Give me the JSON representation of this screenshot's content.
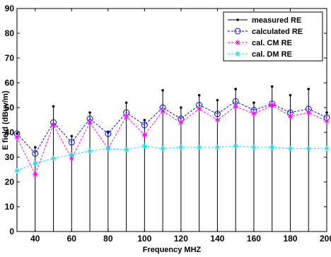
{
  "chart_data": {
    "type": "line",
    "title": "",
    "xlabel": "Frequency MHZ",
    "ylabel": "E field (dBuv/m)",
    "xlim": [
      30,
      200
    ],
    "ylim": [
      0,
      90
    ],
    "x_ticks": [
      40,
      60,
      80,
      100,
      120,
      140,
      160,
      180,
      200
    ],
    "y_ticks": [
      0,
      10,
      20,
      30,
      40,
      50,
      60,
      70,
      80,
      90
    ],
    "grid": false,
    "legend_position": "top-right",
    "x": [
      30,
      40,
      50,
      60,
      70,
      80,
      90,
      100,
      110,
      120,
      130,
      140,
      150,
      160,
      170,
      180,
      190,
      200
    ],
    "series": [
      {
        "name": "measured RE",
        "style": "stem",
        "color": "#000000",
        "marker": "dot",
        "values": [
          39.5,
          34,
          50.5,
          38.5,
          48,
          40,
          52,
          45,
          57,
          50,
          55,
          53,
          57.5,
          52,
          58.5,
          55,
          57.5,
          48
        ]
      },
      {
        "name": "calculated RE",
        "style": "dashed",
        "color": "#0000ff",
        "marker": "circle",
        "values": [
          39.5,
          31.5,
          44,
          36,
          45.5,
          39.5,
          48,
          43,
          50,
          45.5,
          51,
          47.5,
          52.5,
          49,
          51.5,
          48,
          49.5,
          46
        ]
      },
      {
        "name": "cal. CM RE",
        "style": "dashed",
        "color": "#ff00ff",
        "marker": "star",
        "values": [
          38,
          23,
          43,
          29.5,
          44,
          33.5,
          46.5,
          39,
          48.5,
          44,
          49.5,
          45,
          50.5,
          47.5,
          51,
          46.5,
          48,
          44.5
        ]
      },
      {
        "name": "cal. DM RE",
        "style": "dashed",
        "color": "#00e5ee",
        "marker": "star",
        "values": [
          24.5,
          27.5,
          29.5,
          31,
          32.5,
          33.5,
          33,
          34.5,
          33.5,
          34,
          34,
          34,
          34.5,
          34,
          34,
          33.5,
          33.5,
          33.5
        ]
      }
    ]
  }
}
